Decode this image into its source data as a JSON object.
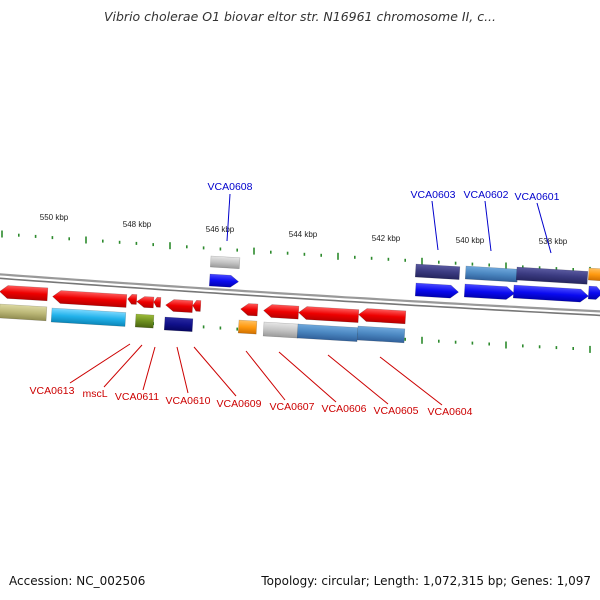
{
  "title": "Vibrio cholerae O1 biovar eltor str. N16961 chromosome II, c...",
  "footer": {
    "accession": "Accession: NC_002506",
    "summary": "Topology: circular; Length: 1,072,315 bp; Genes: 1,097"
  },
  "ruler": {
    "ticks": [
      {
        "label": "550 kbp",
        "kbp": 550
      },
      {
        "label": "548 kbp",
        "kbp": 548
      },
      {
        "label": "546 kbp",
        "kbp": 546
      },
      {
        "label": "544 kbp",
        "kbp": 544
      },
      {
        "label": "542 kbp",
        "kbp": 542
      },
      {
        "label": "540 kbp",
        "kbp": 540
      },
      {
        "label": "538 kbp",
        "kbp": 538
      }
    ]
  },
  "colors": {
    "forward_label": "#0000cc",
    "reverse_label": "#cc0000",
    "tick": "#2d8a2d",
    "backbone": "#888888"
  },
  "forward_genes": [
    {
      "label": "VCA0608"
    },
    {
      "label": "VCA0603"
    },
    {
      "label": "VCA0602"
    },
    {
      "label": "VCA0601"
    }
  ],
  "reverse_genes": [
    {
      "label": "VCA0613"
    },
    {
      "label": "mscL"
    },
    {
      "label": "VCA0611"
    },
    {
      "label": "VCA0610"
    },
    {
      "label": "VCA0609"
    },
    {
      "label": "VCA0607"
    },
    {
      "label": "VCA0606"
    },
    {
      "label": "VCA0605"
    },
    {
      "label": "VCA0604"
    }
  ]
}
